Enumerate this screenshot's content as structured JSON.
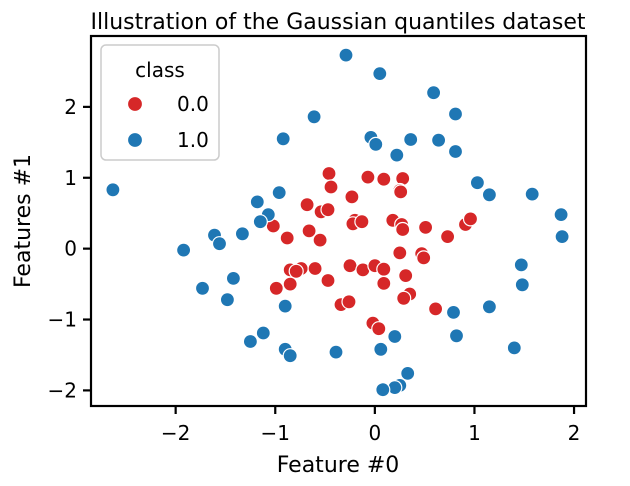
{
  "chart_data": {
    "type": "scatter",
    "title": "Illustration of the Gaussian quantiles dataset",
    "xlabel": "Feature #0",
    "ylabel": "Features #1",
    "xlim": [
      -2.85,
      2.12
    ],
    "ylim": [
      -2.22,
      3.0
    ],
    "xticks": [
      -2,
      -1,
      0,
      1,
      2
    ],
    "yticks": [
      -2,
      -1,
      0,
      1,
      2
    ],
    "tick_labels_x": [
      "−2",
      "−1",
      "0",
      "1",
      "2"
    ],
    "tick_labels_y": [
      "−2",
      "−1",
      "0",
      "1",
      "2"
    ],
    "grid": false,
    "legend": {
      "title": "class",
      "position": "top-left",
      "entries": [
        {
          "label": "0.0",
          "color": "#d62728"
        },
        {
          "label": "1.0",
          "color": "#1f77b4"
        }
      ]
    },
    "series": [
      {
        "name": "0.0",
        "color": "#d62728",
        "points": [
          [
            -0.46,
            1.06
          ],
          [
            -0.44,
            0.87
          ],
          [
            -0.07,
            1.01
          ],
          [
            0.09,
            0.98
          ],
          [
            0.28,
            0.99
          ],
          [
            0.25,
            0.82
          ],
          [
            0.26,
            0.8
          ],
          [
            -0.23,
            0.73
          ],
          [
            -0.68,
            0.62
          ],
          [
            -0.54,
            0.52
          ],
          [
            -0.47,
            0.55
          ],
          [
            0.18,
            0.4
          ],
          [
            0.27,
            0.34
          ],
          [
            -0.2,
            0.4
          ],
          [
            -0.22,
            0.35
          ],
          [
            -0.13,
            0.38
          ],
          [
            0.28,
            0.27
          ],
          [
            0.51,
            0.3
          ],
          [
            0.91,
            0.34
          ],
          [
            0.96,
            0.42
          ],
          [
            0.73,
            0.17
          ],
          [
            -1.02,
            0.32
          ],
          [
            -0.88,
            0.15
          ],
          [
            -0.66,
            0.25
          ],
          [
            -0.55,
            0.12
          ],
          [
            0.25,
            -0.06
          ],
          [
            0.47,
            -0.07
          ],
          [
            0.49,
            -0.13
          ],
          [
            -0.25,
            -0.24
          ],
          [
            -0.12,
            -0.3
          ],
          [
            0.0,
            -0.24
          ],
          [
            0.09,
            -0.29
          ],
          [
            -0.74,
            -0.28
          ],
          [
            -0.6,
            -0.28
          ],
          [
            -0.85,
            -0.3
          ],
          [
            -0.79,
            -0.32
          ],
          [
            -0.47,
            -0.45
          ],
          [
            0.31,
            -0.38
          ],
          [
            0.09,
            -0.49
          ],
          [
            -0.85,
            -0.5
          ],
          [
            -0.99,
            -0.56
          ],
          [
            0.35,
            -0.64
          ],
          [
            0.29,
            -0.7
          ],
          [
            -0.34,
            -0.79
          ],
          [
            -0.26,
            -0.75
          ],
          [
            0.61,
            -0.85
          ],
          [
            -0.02,
            -1.05
          ],
          [
            0.04,
            -1.13
          ]
        ]
      },
      {
        "name": "1.0",
        "color": "#1f77b4",
        "points": [
          [
            -0.29,
            2.73
          ],
          [
            0.05,
            2.47
          ],
          [
            0.59,
            2.2
          ],
          [
            -0.61,
            1.86
          ],
          [
            0.81,
            1.9
          ],
          [
            -0.04,
            1.57
          ],
          [
            0.36,
            1.54
          ],
          [
            0.64,
            1.53
          ],
          [
            -0.92,
            1.55
          ],
          [
            0.01,
            1.47
          ],
          [
            0.22,
            1.32
          ],
          [
            0.81,
            1.37
          ],
          [
            1.03,
            0.93
          ],
          [
            1.15,
            0.76
          ],
          [
            1.58,
            0.77
          ],
          [
            -2.63,
            0.83
          ],
          [
            -0.96,
            0.79
          ],
          [
            -1.18,
            0.66
          ],
          [
            -1.07,
            0.48
          ],
          [
            -1.15,
            0.38
          ],
          [
            1.87,
            0.48
          ],
          [
            1.88,
            0.17
          ],
          [
            -1.61,
            0.19
          ],
          [
            -1.33,
            0.21
          ],
          [
            -1.56,
            0.07
          ],
          [
            -1.92,
            -0.02
          ],
          [
            1.47,
            -0.23
          ],
          [
            -1.42,
            -0.42
          ],
          [
            1.48,
            -0.51
          ],
          [
            -1.73,
            -0.56
          ],
          [
            -1.48,
            -0.72
          ],
          [
            -0.9,
            -0.81
          ],
          [
            1.15,
            -0.82
          ],
          [
            0.79,
            -0.9
          ],
          [
            -1.12,
            -1.19
          ],
          [
            0.82,
            -1.23
          ],
          [
            -1.25,
            -1.31
          ],
          [
            -0.39,
            -1.46
          ],
          [
            0.06,
            -1.42
          ],
          [
            -0.9,
            -1.42
          ],
          [
            -0.85,
            -1.51
          ],
          [
            0.2,
            -1.24
          ],
          [
            1.4,
            -1.4
          ],
          [
            0.33,
            -1.76
          ],
          [
            0.25,
            -1.93
          ],
          [
            0.2,
            -1.96
          ],
          [
            0.08,
            -1.99
          ]
        ]
      }
    ]
  }
}
